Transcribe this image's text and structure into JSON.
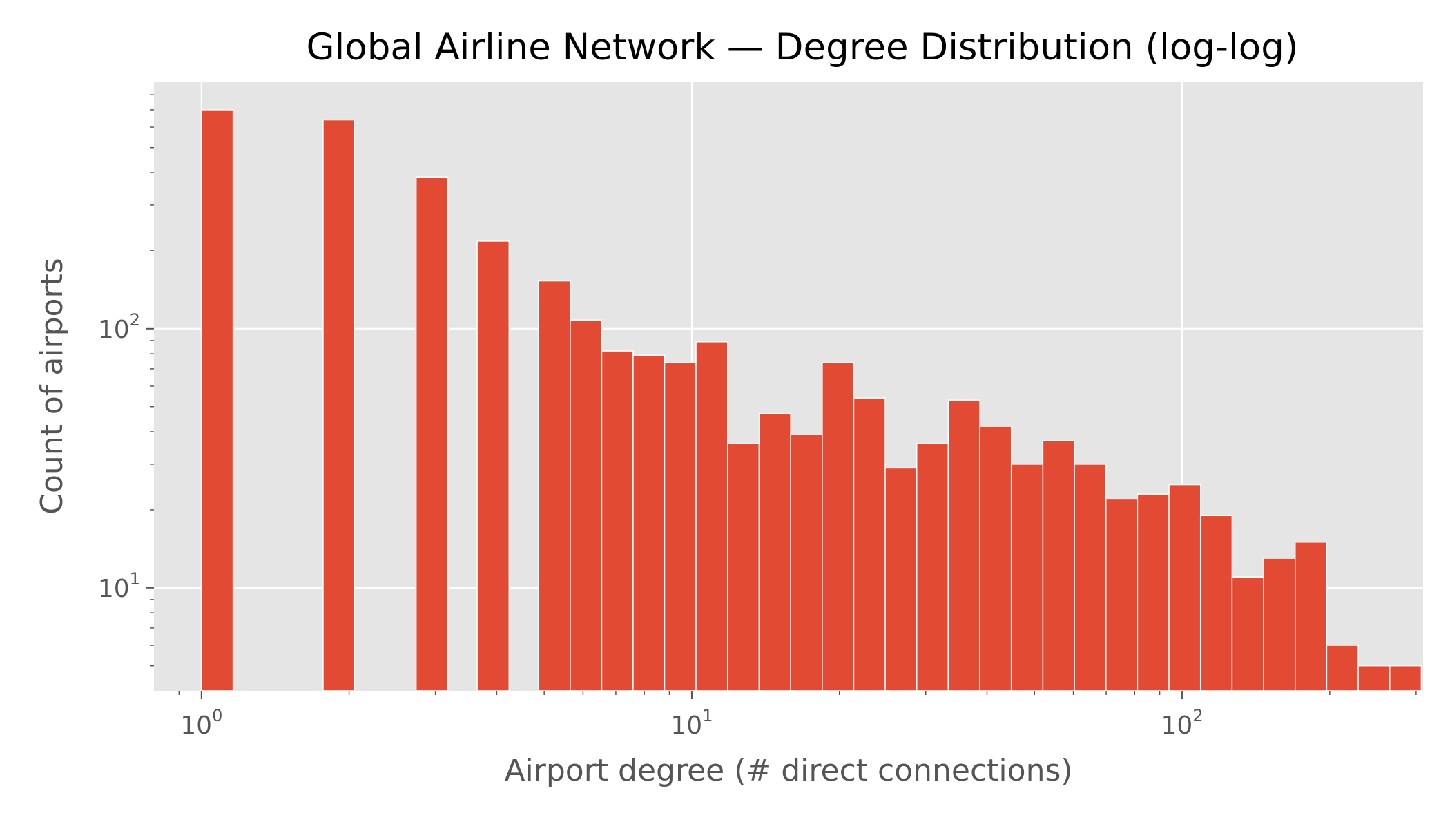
{
  "chart_data": {
    "type": "bar",
    "title": "Global Airline Network — Degree Distribution (log-log)",
    "xlabel": "Airport degree (# direct connections)",
    "ylabel": "Count of airports",
    "x_scale": "log",
    "y_scale": "log",
    "xlim": [
      0.8,
      310
    ],
    "ylim": [
      4.0,
      900
    ],
    "grid": true,
    "bar_color": "#E24A33",
    "plot_background": "#E5E5E5",
    "x_ticks": [
      {
        "value": 1,
        "base": "10",
        "exp": "0"
      },
      {
        "value": 10,
        "base": "10",
        "exp": "1"
      },
      {
        "value": 100,
        "base": "10",
        "exp": "2"
      }
    ],
    "y_ticks": [
      {
        "value": 10,
        "base": "10",
        "exp": "1"
      },
      {
        "value": 100,
        "base": "10",
        "exp": "2"
      }
    ],
    "bins": [
      {
        "x0": 1.0,
        "x1": 1.16,
        "value": 700
      },
      {
        "x0": 1.77,
        "x1": 2.05,
        "value": 640
      },
      {
        "x0": 2.74,
        "x1": 3.18,
        "value": 385
      },
      {
        "x0": 3.65,
        "x1": 4.24,
        "value": 218
      },
      {
        "x0": 4.87,
        "x1": 5.65,
        "value": 153
      },
      {
        "x0": 5.65,
        "x1": 6.55,
        "value": 108
      },
      {
        "x0": 6.55,
        "x1": 7.59,
        "value": 82
      },
      {
        "x0": 7.59,
        "x1": 8.8,
        "value": 79
      },
      {
        "x0": 8.8,
        "x1": 10.2,
        "value": 74
      },
      {
        "x0": 10.2,
        "x1": 11.83,
        "value": 89
      },
      {
        "x0": 11.83,
        "x1": 13.72,
        "value": 36
      },
      {
        "x0": 13.72,
        "x1": 15.91,
        "value": 47
      },
      {
        "x0": 15.91,
        "x1": 18.45,
        "value": 39
      },
      {
        "x0": 18.45,
        "x1": 21.39,
        "value": 74
      },
      {
        "x0": 21.39,
        "x1": 24.8,
        "value": 54
      },
      {
        "x0": 24.8,
        "x1": 28.76,
        "value": 29
      },
      {
        "x0": 28.76,
        "x1": 33.35,
        "value": 36
      },
      {
        "x0": 33.35,
        "x1": 38.67,
        "value": 53
      },
      {
        "x0": 38.67,
        "x1": 44.84,
        "value": 42
      },
      {
        "x0": 44.84,
        "x1": 52.0,
        "value": 30
      },
      {
        "x0": 52.0,
        "x1": 60.3,
        "value": 37
      },
      {
        "x0": 60.3,
        "x1": 69.92,
        "value": 30
      },
      {
        "x0": 69.92,
        "x1": 81.08,
        "value": 22
      },
      {
        "x0": 81.08,
        "x1": 94.02,
        "value": 23
      },
      {
        "x0": 94.02,
        "x1": 109.03,
        "value": 25
      },
      {
        "x0": 109.03,
        "x1": 126.43,
        "value": 19
      },
      {
        "x0": 126.43,
        "x1": 146.61,
        "value": 11
      },
      {
        "x0": 146.61,
        "x1": 170.01,
        "value": 13
      },
      {
        "x0": 170.01,
        "x1": 197.14,
        "value": 15
      },
      {
        "x0": 197.14,
        "x1": 228.6,
        "value": 6
      },
      {
        "x0": 228.6,
        "x1": 265.09,
        "value": 5
      },
      {
        "x0": 265.09,
        "x1": 307.4,
        "value": 5
      }
    ]
  }
}
